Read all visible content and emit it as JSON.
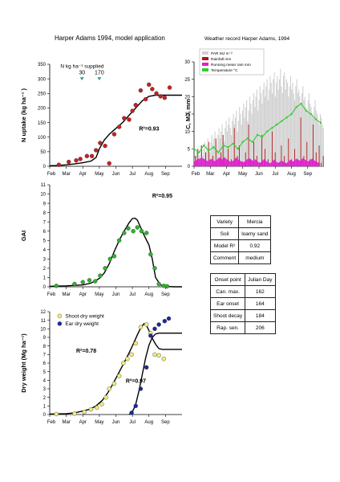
{
  "page": {
    "title_main": "Harper Adams 1994, model application",
    "title_weather": "Weather record Harper Adams, 1994"
  },
  "colors": {
    "observed_red": "#cc1f1f",
    "observed_green": "#2db52d",
    "ear_blue": "#1a2a9c",
    "shoot_yellow": "#f2ec78",
    "model": "#000000",
    "par": "#d0d0d0",
    "rain": "#b01616",
    "rain_mean": "#e020d0",
    "temp": "#33cc33"
  },
  "months": [
    "Feb",
    "Mar",
    "Apr",
    "May",
    "Jun",
    "Jul",
    "Aug",
    "Sep"
  ],
  "info_table": [
    {
      "label": "Variety",
      "value": "Mercia"
    },
    {
      "label": "Soil",
      "value": "loamy sand"
    },
    {
      "label": "Model R²",
      "value": "0.92"
    },
    {
      "label": "Comment",
      "value": "medium"
    }
  ],
  "onset_table": {
    "header": {
      "label": "Onset point",
      "value": "Julian Day"
    },
    "rows": [
      {
        "label": "Can. max.",
        "value": "162"
      },
      {
        "label": "Ear onset",
        "value": "164"
      },
      {
        "label": "Shoot decay",
        "value": "184"
      },
      {
        "label": "Rap. sen.",
        "value": "206"
      }
    ]
  },
  "chart_data": [
    {
      "id": "n_uptake",
      "type": "scatter",
      "ylabel": "N uptake (kg ha⁻¹ )",
      "ylim": [
        0,
        350
      ],
      "yticks": [
        0,
        50,
        100,
        150,
        200,
        250,
        300,
        350
      ],
      "xlim": [
        0,
        8
      ],
      "annotation": "R²=0.93",
      "n_supplied": {
        "label": "N kg ha⁻¹ supplied",
        "doses": [
          {
            "x": 1.95,
            "value": "30"
          },
          {
            "x": 3.0,
            "value": "170"
          }
        ]
      },
      "observed": {
        "x": [
          0.55,
          1.15,
          1.6,
          1.85,
          2.25,
          2.55,
          2.8,
          3.05,
          3.35,
          3.6,
          3.9,
          4.2,
          4.5,
          4.8,
          5.0,
          5.2,
          5.5,
          5.8,
          6.0,
          6.2,
          6.45,
          6.7,
          6.95,
          7.25
        ],
        "y": [
          5,
          15,
          20,
          25,
          35,
          35,
          55,
          80,
          70,
          10,
          110,
          135,
          165,
          160,
          190,
          210,
          260,
          230,
          280,
          265,
          250,
          240,
          235,
          270
        ]
      },
      "model": {
        "x": [
          0,
          0.5,
          1,
          1.5,
          2,
          2.5,
          2.8,
          3.0,
          3.3,
          3.6,
          4.0,
          4.4,
          4.8,
          5.2,
          5.6,
          6.0,
          6.4,
          6.8,
          7.2,
          7.5,
          8
        ],
        "y": [
          2,
          3,
          5,
          8,
          12,
          18,
          30,
          60,
          90,
          110,
          130,
          150,
          175,
          200,
          225,
          240,
          244,
          244,
          244,
          244,
          244
        ]
      }
    },
    {
      "id": "weather",
      "type": "bar",
      "ylabel": "C, MJ, mm",
      "ylim": [
        0,
        30
      ],
      "yticks": [
        0,
        5,
        10,
        15,
        20,
        25,
        30
      ],
      "xlim": [
        0,
        8
      ],
      "legend": [
        "PAR MJ m⁻²",
        "Rainfall mm",
        "Running mean rain mm",
        "Temperature °C"
      ],
      "par": [
        2,
        3,
        4,
        2,
        5,
        3,
        6,
        4,
        3,
        5,
        7,
        4,
        6,
        8,
        5,
        4,
        7,
        9,
        6,
        8,
        10,
        7,
        5,
        9,
        11,
        8,
        10,
        12,
        9,
        7,
        11,
        13,
        10,
        12,
        14,
        11,
        9,
        13,
        15,
        12,
        14,
        16,
        10,
        13,
        17,
        15,
        12,
        16,
        18,
        14,
        17,
        19,
        13,
        16,
        20,
        18,
        15,
        19,
        21,
        17,
        20,
        22,
        16,
        19,
        23,
        21,
        18,
        22,
        24,
        20,
        23,
        25,
        19,
        22,
        26,
        24,
        21,
        25,
        27,
        20,
        24,
        26,
        22,
        25,
        28,
        23,
        21,
        26,
        27,
        22,
        25,
        24,
        20,
        23,
        26,
        22,
        24,
        21,
        19,
        23,
        25,
        21,
        22,
        20,
        18,
        21,
        23,
        19,
        20,
        17,
        16,
        19,
        21,
        18,
        17,
        15,
        14,
        17,
        19,
        16,
        15,
        13,
        12,
        15,
        14,
        12,
        11
      ],
      "rain": [
        0,
        3,
        0,
        5,
        0,
        1,
        0,
        6,
        0,
        2,
        0,
        4,
        0,
        0,
        7,
        0,
        1,
        0,
        3,
        0,
        0,
        8,
        0,
        2,
        0,
        0,
        4,
        0,
        9,
        0,
        1,
        0,
        0,
        5,
        0,
        0,
        2,
        0,
        0,
        11,
        0,
        0,
        3,
        0,
        6,
        0,
        0,
        1,
        0,
        0,
        4,
        0,
        0,
        12,
        0,
        2,
        0,
        0,
        7,
        0,
        0,
        3,
        0,
        0,
        1,
        0,
        9,
        0,
        0,
        5,
        0,
        0,
        2,
        0,
        0,
        0,
        10,
        0,
        0,
        4,
        0,
        0,
        1,
        0,
        0,
        6,
        0,
        0,
        3,
        0,
        0,
        0,
        8,
        0,
        0,
        2,
        0,
        0,
        5,
        0,
        0,
        1,
        0,
        0,
        14,
        0,
        0,
        3,
        0,
        0,
        7,
        0,
        0,
        2,
        0,
        0,
        12,
        0,
        0,
        4,
        0,
        0,
        6,
        0,
        1,
        0,
        3
      ],
      "rain_mean": [
        1.5,
        1.6,
        1.8,
        2.0,
        2.1,
        2.2,
        2.3,
        2.4,
        2.3,
        2.2,
        2.0,
        1.8,
        1.6,
        1.5,
        1.7,
        1.9,
        2.1,
        2.0,
        1.8,
        1.6,
        1.5,
        1.7,
        1.9,
        2.2,
        2.5,
        2.4,
        2.2,
        2.0,
        2.3,
        2.6,
        2.4,
        2.1,
        1.9,
        1.7,
        1.5,
        1.4,
        1.3,
        1.5,
        1.7,
        2.0,
        2.3,
        2.5,
        2.2,
        1.9,
        1.7,
        1.5,
        1.4,
        1.3,
        1.2,
        1.4,
        1.6,
        1.9,
        2.1,
        2.4,
        2.2,
        2.0,
        1.8,
        1.6,
        1.8,
        2.0,
        1.8,
        1.5,
        1.3,
        1.1,
        1.0,
        1.2,
        1.5,
        1.8,
        2.0,
        1.8,
        1.5,
        1.3,
        1.1,
        1.0,
        0.9,
        1.1,
        1.4,
        1.7,
        1.9,
        1.6,
        1.3,
        1.1,
        1.0,
        1.2,
        1.5,
        1.7,
        1.5,
        1.3,
        1.1,
        1.0,
        0.9,
        1.2,
        1.5,
        1.7,
        1.8,
        1.6,
        1.4,
        1.5,
        1.8,
        2.0,
        2.2,
        2.0,
        1.8,
        1.6,
        1.8,
        2.1,
        2.3,
        2.1,
        1.9,
        1.7,
        1.5,
        1.4,
        1.6,
        1.8,
        2.0,
        2.2,
        1.9,
        1.7,
        1.5,
        1.3,
        1.2,
        1.1,
        1.0
      ],
      "temperature": {
        "x": [
          0.0,
          0.3,
          0.6,
          0.9,
          1.2,
          1.5,
          1.8,
          2.1,
          2.4,
          2.7,
          3.0,
          3.3,
          3.6,
          3.9,
          4.2,
          4.5,
          4.8,
          5.1,
          5.4,
          5.7,
          6.0,
          6.3,
          6.6,
          6.9,
          7.2,
          7.5,
          7.8
        ],
        "y": [
          5,
          4,
          6,
          4.5,
          5.5,
          4,
          6,
          5.5,
          6.5,
          5,
          7,
          8,
          7,
          9,
          8.5,
          10,
          11,
          12,
          13,
          14,
          15,
          17,
          18,
          16,
          15,
          13.5,
          12.5
        ]
      }
    },
    {
      "id": "gai",
      "type": "scatter",
      "ylabel": "GAI",
      "ylim": [
        0,
        11
      ],
      "yticks": [
        0,
        1,
        2,
        3,
        4,
        5,
        6,
        7,
        8,
        9,
        10,
        11
      ],
      "xlim": [
        0,
        8
      ],
      "annotation": "R²=0.95",
      "observed": {
        "x": [
          0.4,
          1.5,
          2.0,
          2.4,
          2.75,
          3.05,
          3.35,
          3.65,
          3.9,
          4.2,
          4.5,
          4.75,
          5.05,
          5.3,
          5.55,
          5.85,
          6.1,
          6.35,
          6.6,
          6.9,
          7.1
        ],
        "y": [
          0.1,
          0.3,
          0.5,
          0.7,
          0.6,
          1.2,
          2.0,
          3.0,
          3.3,
          5.0,
          5.8,
          6.3,
          6.0,
          6.4,
          6.0,
          5.8,
          3.5,
          2.0,
          0.3,
          0.1,
          0.05
        ]
      },
      "model": {
        "x": [
          0,
          1,
          2,
          2.5,
          3.0,
          3.3,
          3.6,
          3.9,
          4.2,
          4.5,
          4.8,
          5.0,
          5.15,
          5.3,
          5.5,
          5.75,
          6.0,
          6.2,
          6.4,
          6.7,
          7,
          7.5,
          8
        ],
        "y": [
          0.05,
          0.1,
          0.2,
          0.4,
          0.9,
          1.5,
          2.5,
          3.8,
          5.0,
          6.0,
          6.9,
          7.35,
          7.4,
          7.2,
          6.4,
          5.4,
          4.5,
          3.0,
          1.0,
          0.2,
          0.05,
          0,
          0
        ]
      }
    },
    {
      "id": "dry_weight",
      "type": "scatter",
      "ylabel": "Dry weight (Mg ha⁻¹)",
      "ylim": [
        0,
        12
      ],
      "yticks": [
        0,
        1,
        2,
        3,
        4,
        5,
        6,
        7,
        8,
        9,
        10,
        11,
        12
      ],
      "xlim": [
        0,
        8
      ],
      "legend": [
        "Shoot dry weight",
        "Ear dry weight"
      ],
      "annotations": [
        {
          "text": "R²=0.78",
          "x": 1.6,
          "y": 7.2
        },
        {
          "text": "R²=0.97",
          "x": 4.6,
          "y": 3.7
        }
      ],
      "shoot": {
        "x": [
          0.4,
          1.5,
          2.1,
          2.5,
          2.85,
          3.15,
          3.4,
          3.6,
          3.9,
          4.2,
          4.45,
          4.7,
          4.95,
          5.2,
          5.5,
          5.85,
          6.1,
          6.35,
          6.6,
          6.9
        ],
        "y": [
          0.05,
          0.1,
          0.3,
          0.6,
          0.8,
          1.2,
          2.0,
          3.0,
          3.6,
          4.5,
          6.0,
          6.5,
          7.0,
          8.3,
          10.2,
          10.5,
          9.5,
          7.0,
          6.9,
          6.5
        ]
      },
      "ear": {
        "x": [
          4.95,
          5.2,
          5.5,
          5.85,
          6.1,
          6.35,
          6.6,
          6.95,
          7.2
        ],
        "y": [
          0.2,
          1.0,
          3.0,
          5.5,
          9.2,
          10.0,
          10.5,
          10.9,
          11.2
        ]
      },
      "model_shoot": {
        "x": [
          0,
          1,
          1.5,
          2.0,
          2.4,
          2.8,
          3.2,
          3.5,
          3.8,
          4.1,
          4.4,
          4.7,
          5.0,
          5.3,
          5.5,
          5.7,
          5.85,
          6.0,
          6.2,
          6.4,
          6.6,
          6.8,
          7.0,
          7.5,
          8
        ],
        "y": [
          0.05,
          0.1,
          0.2,
          0.4,
          0.6,
          1.0,
          1.7,
          2.5,
          3.5,
          4.6,
          5.7,
          6.8,
          8.0,
          9.3,
          10.1,
          10.6,
          10.4,
          9.8,
          8.9,
          8.2,
          7.7,
          7.6,
          7.6,
          7.6,
          7.6
        ]
      },
      "model_ear": {
        "x": [
          4.8,
          5.0,
          5.2,
          5.4,
          5.6,
          5.8,
          6.0,
          6.2,
          6.4,
          6.6,
          7.0,
          7.5,
          8
        ],
        "y": [
          0,
          0.3,
          1.2,
          2.8,
          4.7,
          6.6,
          8.1,
          9.0,
          9.4,
          9.5,
          9.5,
          9.5,
          9.5
        ]
      }
    }
  ]
}
